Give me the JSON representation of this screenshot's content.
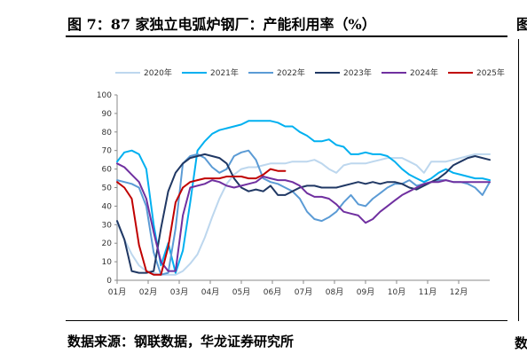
{
  "title": "图 7：87 家独立电弧炉钢厂：产能利用率（%）",
  "edge_glyph": "图",
  "source": "数据来源：钢联数据，华龙证券研究所",
  "edge_glyph2": "数",
  "chart_data": {
    "type": "line",
    "title": "",
    "xlabel": "",
    "ylabel": "",
    "x_unit": "week",
    "x_ticks": [
      "01月",
      "02月",
      "03月",
      "04月",
      "05月",
      "06月",
      "07月",
      "08月",
      "09月",
      "10月",
      "11月",
      "12月"
    ],
    "x_range": [
      1,
      52
    ],
    "y_ticks": [
      0,
      10,
      20,
      30,
      40,
      50,
      60,
      70,
      80,
      90,
      100
    ],
    "ylim": [
      0,
      100
    ],
    "grid": false,
    "legend": "top",
    "series": [
      {
        "name": "2020年",
        "color": "#bdd7ee",
        "points": [
          [
            1,
            31
          ],
          [
            2,
            22
          ],
          [
            3,
            14
          ],
          [
            4,
            8
          ],
          [
            5,
            5
          ],
          [
            6,
            4
          ],
          [
            7,
            3
          ],
          [
            8,
            3
          ],
          [
            9,
            3
          ],
          [
            10,
            5
          ],
          [
            11,
            9
          ],
          [
            12,
            14
          ],
          [
            13,
            23
          ],
          [
            14,
            34
          ],
          [
            15,
            44
          ],
          [
            16,
            52
          ],
          [
            17,
            57
          ],
          [
            18,
            60
          ],
          [
            19,
            61
          ],
          [
            20,
            61
          ],
          [
            21,
            62
          ],
          [
            22,
            63
          ],
          [
            23,
            63
          ],
          [
            24,
            63
          ],
          [
            25,
            64
          ],
          [
            26,
            64
          ],
          [
            27,
            64
          ],
          [
            28,
            65
          ],
          [
            29,
            63
          ],
          [
            30,
            60
          ],
          [
            31,
            58
          ],
          [
            32,
            62
          ],
          [
            33,
            63
          ],
          [
            34,
            63
          ],
          [
            35,
            63
          ],
          [
            36,
            64
          ],
          [
            37,
            65
          ],
          [
            38,
            66
          ],
          [
            39,
            66
          ],
          [
            40,
            66
          ],
          [
            41,
            64
          ],
          [
            42,
            62
          ],
          [
            43,
            58
          ],
          [
            44,
            64
          ],
          [
            45,
            64
          ],
          [
            46,
            64
          ],
          [
            47,
            65
          ],
          [
            48,
            66
          ],
          [
            49,
            67
          ],
          [
            50,
            68
          ],
          [
            51,
            68
          ],
          [
            52,
            68
          ]
        ]
      },
      {
        "name": "2021年",
        "color": "#00b0f0",
        "points": [
          [
            1,
            64
          ],
          [
            2,
            69
          ],
          [
            3,
            70
          ],
          [
            4,
            68
          ],
          [
            5,
            60
          ],
          [
            6,
            30
          ],
          [
            7,
            8
          ],
          [
            8,
            20
          ],
          [
            9,
            4
          ],
          [
            10,
            16
          ],
          [
            11,
            42
          ],
          [
            12,
            70
          ],
          [
            13,
            75
          ],
          [
            14,
            79
          ],
          [
            15,
            81
          ],
          [
            16,
            82
          ],
          [
            17,
            83
          ],
          [
            18,
            84
          ],
          [
            19,
            86
          ],
          [
            20,
            86
          ],
          [
            21,
            86
          ],
          [
            22,
            86
          ],
          [
            23,
            85
          ],
          [
            24,
            83
          ],
          [
            25,
            83
          ],
          [
            26,
            80
          ],
          [
            27,
            78
          ],
          [
            28,
            75
          ],
          [
            29,
            75
          ],
          [
            30,
            76
          ],
          [
            31,
            73
          ],
          [
            32,
            72
          ],
          [
            33,
            68
          ],
          [
            34,
            68
          ],
          [
            35,
            69
          ],
          [
            36,
            68
          ],
          [
            37,
            68
          ],
          [
            38,
            67
          ],
          [
            39,
            64
          ],
          [
            40,
            60
          ],
          [
            41,
            57
          ],
          [
            42,
            55
          ],
          [
            43,
            53
          ],
          [
            44,
            55
          ],
          [
            45,
            58
          ],
          [
            46,
            60
          ],
          [
            47,
            58
          ],
          [
            48,
            57
          ],
          [
            49,
            56
          ],
          [
            50,
            55
          ],
          [
            51,
            55
          ],
          [
            52,
            54
          ]
        ]
      },
      {
        "name": "2022年",
        "color": "#5b9bd5",
        "points": [
          [
            1,
            54
          ],
          [
            2,
            53
          ],
          [
            3,
            52
          ],
          [
            4,
            50
          ],
          [
            5,
            40
          ],
          [
            6,
            15
          ],
          [
            7,
            3
          ],
          [
            8,
            4
          ],
          [
            9,
            28
          ],
          [
            10,
            63
          ],
          [
            11,
            67
          ],
          [
            12,
            68
          ],
          [
            13,
            66
          ],
          [
            14,
            61
          ],
          [
            15,
            58
          ],
          [
            16,
            60
          ],
          [
            17,
            67
          ],
          [
            18,
            69
          ],
          [
            19,
            70
          ],
          [
            20,
            65
          ],
          [
            21,
            55
          ],
          [
            22,
            53
          ],
          [
            23,
            52
          ],
          [
            24,
            50
          ],
          [
            25,
            48
          ],
          [
            26,
            44
          ],
          [
            27,
            37
          ],
          [
            28,
            33
          ],
          [
            29,
            32
          ],
          [
            30,
            34
          ],
          [
            31,
            37
          ],
          [
            32,
            42
          ],
          [
            33,
            46
          ],
          [
            34,
            41
          ],
          [
            35,
            40
          ],
          [
            36,
            44
          ],
          [
            37,
            47
          ],
          [
            38,
            50
          ],
          [
            39,
            52
          ],
          [
            40,
            52
          ],
          [
            41,
            54
          ],
          [
            42,
            51
          ],
          [
            43,
            52
          ],
          [
            44,
            53
          ],
          [
            45,
            54
          ],
          [
            46,
            54
          ],
          [
            47,
            53
          ],
          [
            48,
            53
          ],
          [
            49,
            52
          ],
          [
            50,
            50
          ],
          [
            51,
            46
          ],
          [
            52,
            53
          ]
        ]
      },
      {
        "name": "2023年",
        "color": "#203864",
        "points": [
          [
            1,
            32
          ],
          [
            2,
            22
          ],
          [
            3,
            5
          ],
          [
            4,
            4
          ],
          [
            5,
            4
          ],
          [
            6,
            5
          ],
          [
            7,
            28
          ],
          [
            8,
            48
          ],
          [
            9,
            58
          ],
          [
            10,
            63
          ],
          [
            11,
            66
          ],
          [
            12,
            67
          ],
          [
            13,
            68
          ],
          [
            14,
            67
          ],
          [
            15,
            66
          ],
          [
            16,
            63
          ],
          [
            17,
            55
          ],
          [
            18,
            50
          ],
          [
            19,
            48
          ],
          [
            20,
            49
          ],
          [
            21,
            48
          ],
          [
            22,
            51
          ],
          [
            23,
            46
          ],
          [
            24,
            46
          ],
          [
            25,
            48
          ],
          [
            26,
            50
          ],
          [
            27,
            51
          ],
          [
            28,
            51
          ],
          [
            29,
            50
          ],
          [
            30,
            50
          ],
          [
            31,
            50
          ],
          [
            32,
            51
          ],
          [
            33,
            52
          ],
          [
            34,
            53
          ],
          [
            35,
            52
          ],
          [
            36,
            53
          ],
          [
            37,
            52
          ],
          [
            38,
            53
          ],
          [
            39,
            53
          ],
          [
            40,
            52
          ],
          [
            41,
            50
          ],
          [
            42,
            49
          ],
          [
            43,
            51
          ],
          [
            44,
            53
          ],
          [
            45,
            55
          ],
          [
            46,
            58
          ],
          [
            47,
            62
          ],
          [
            48,
            64
          ],
          [
            49,
            66
          ],
          [
            50,
            67
          ],
          [
            51,
            66
          ],
          [
            52,
            65
          ]
        ]
      },
      {
        "name": "2024年",
        "color": "#7030a0",
        "points": [
          [
            1,
            63
          ],
          [
            2,
            61
          ],
          [
            3,
            57
          ],
          [
            4,
            53
          ],
          [
            5,
            44
          ],
          [
            6,
            26
          ],
          [
            7,
            10
          ],
          [
            8,
            5
          ],
          [
            9,
            5
          ],
          [
            10,
            35
          ],
          [
            11,
            50
          ],
          [
            12,
            51
          ],
          [
            13,
            52
          ],
          [
            14,
            54
          ],
          [
            15,
            53
          ],
          [
            16,
            51
          ],
          [
            17,
            50
          ],
          [
            18,
            51
          ],
          [
            19,
            52
          ],
          [
            20,
            53
          ],
          [
            21,
            56
          ],
          [
            22,
            55
          ],
          [
            23,
            54
          ],
          [
            24,
            54
          ],
          [
            25,
            53
          ],
          [
            26,
            51
          ],
          [
            27,
            47
          ],
          [
            28,
            45
          ],
          [
            29,
            45
          ],
          [
            30,
            44
          ],
          [
            31,
            41
          ],
          [
            32,
            37
          ],
          [
            33,
            36
          ],
          [
            34,
            35
          ],
          [
            35,
            31
          ],
          [
            36,
            33
          ],
          [
            37,
            37
          ],
          [
            38,
            40
          ],
          [
            39,
            43
          ],
          [
            40,
            46
          ],
          [
            41,
            48
          ],
          [
            42,
            50
          ],
          [
            43,
            52
          ],
          [
            44,
            53
          ],
          [
            45,
            53
          ],
          [
            46,
            54
          ],
          [
            47,
            53
          ],
          [
            48,
            53
          ],
          [
            49,
            53
          ],
          [
            50,
            53
          ],
          [
            51,
            53
          ],
          [
            52,
            53
          ]
        ]
      },
      {
        "name": "2025年",
        "color": "#c00000",
        "points": [
          [
            1,
            53
          ],
          [
            2,
            50
          ],
          [
            3,
            44
          ],
          [
            4,
            19
          ],
          [
            5,
            5
          ],
          [
            6,
            3
          ],
          [
            7,
            3
          ],
          [
            8,
            18
          ],
          [
            9,
            42
          ],
          [
            10,
            50
          ],
          [
            11,
            53
          ],
          [
            12,
            54
          ],
          [
            13,
            55
          ],
          [
            14,
            55
          ],
          [
            15,
            55
          ],
          [
            16,
            56
          ],
          [
            17,
            56
          ],
          [
            18,
            56
          ],
          [
            19,
            55
          ],
          [
            20,
            55
          ],
          [
            21,
            57
          ],
          [
            22,
            60
          ],
          [
            23,
            59
          ],
          [
            24,
            59
          ]
        ]
      }
    ]
  }
}
